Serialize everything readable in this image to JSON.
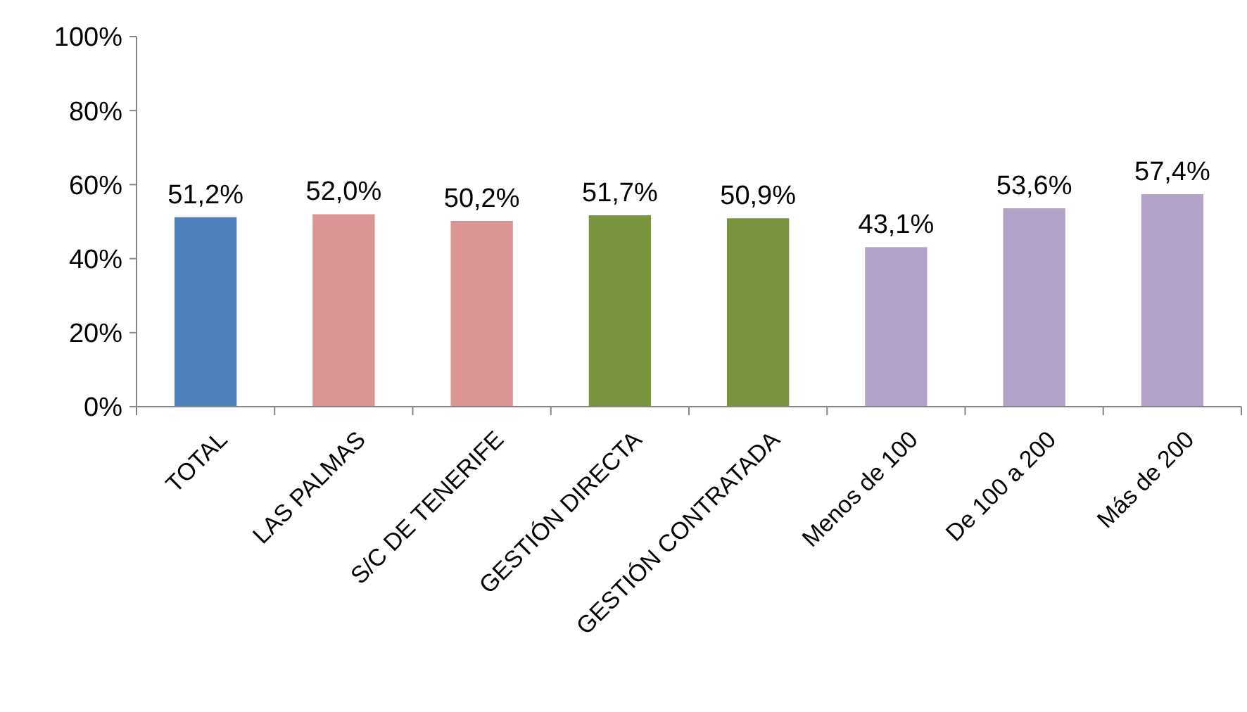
{
  "chart_data": {
    "type": "bar",
    "categories": [
      "TOTAL",
      "LAS PALMAS",
      "S/C DE TENERIFE",
      "GESTIÓN DIRECTA",
      "GESTIÓN CONTRATADA",
      "Menos de 100",
      "De 100 a 200",
      "Más de 200"
    ],
    "values": [
      51.2,
      52.0,
      50.2,
      51.7,
      50.9,
      43.1,
      53.6,
      57.4
    ],
    "colors": [
      "#4f81bd",
      "#d99694",
      "#d99694",
      "#77933c",
      "#77933c",
      "#b3a2c7",
      "#b3a2c7",
      "#b3a2c7"
    ],
    "value_labels": [
      "51,2%",
      "52,0%",
      "50,2%",
      "51,7%",
      "50,9%",
      "43,1%",
      "53,6%",
      "57,4%"
    ],
    "ylim": [
      0,
      100
    ],
    "yticks": [
      {
        "value": 0,
        "label": "0%"
      },
      {
        "value": 20,
        "label": "20%"
      },
      {
        "value": 40,
        "label": "40%"
      },
      {
        "value": 60,
        "label": "60%"
      },
      {
        "value": 80,
        "label": "80%"
      },
      {
        "value": 100,
        "label": "100%"
      }
    ],
    "grid": false
  }
}
